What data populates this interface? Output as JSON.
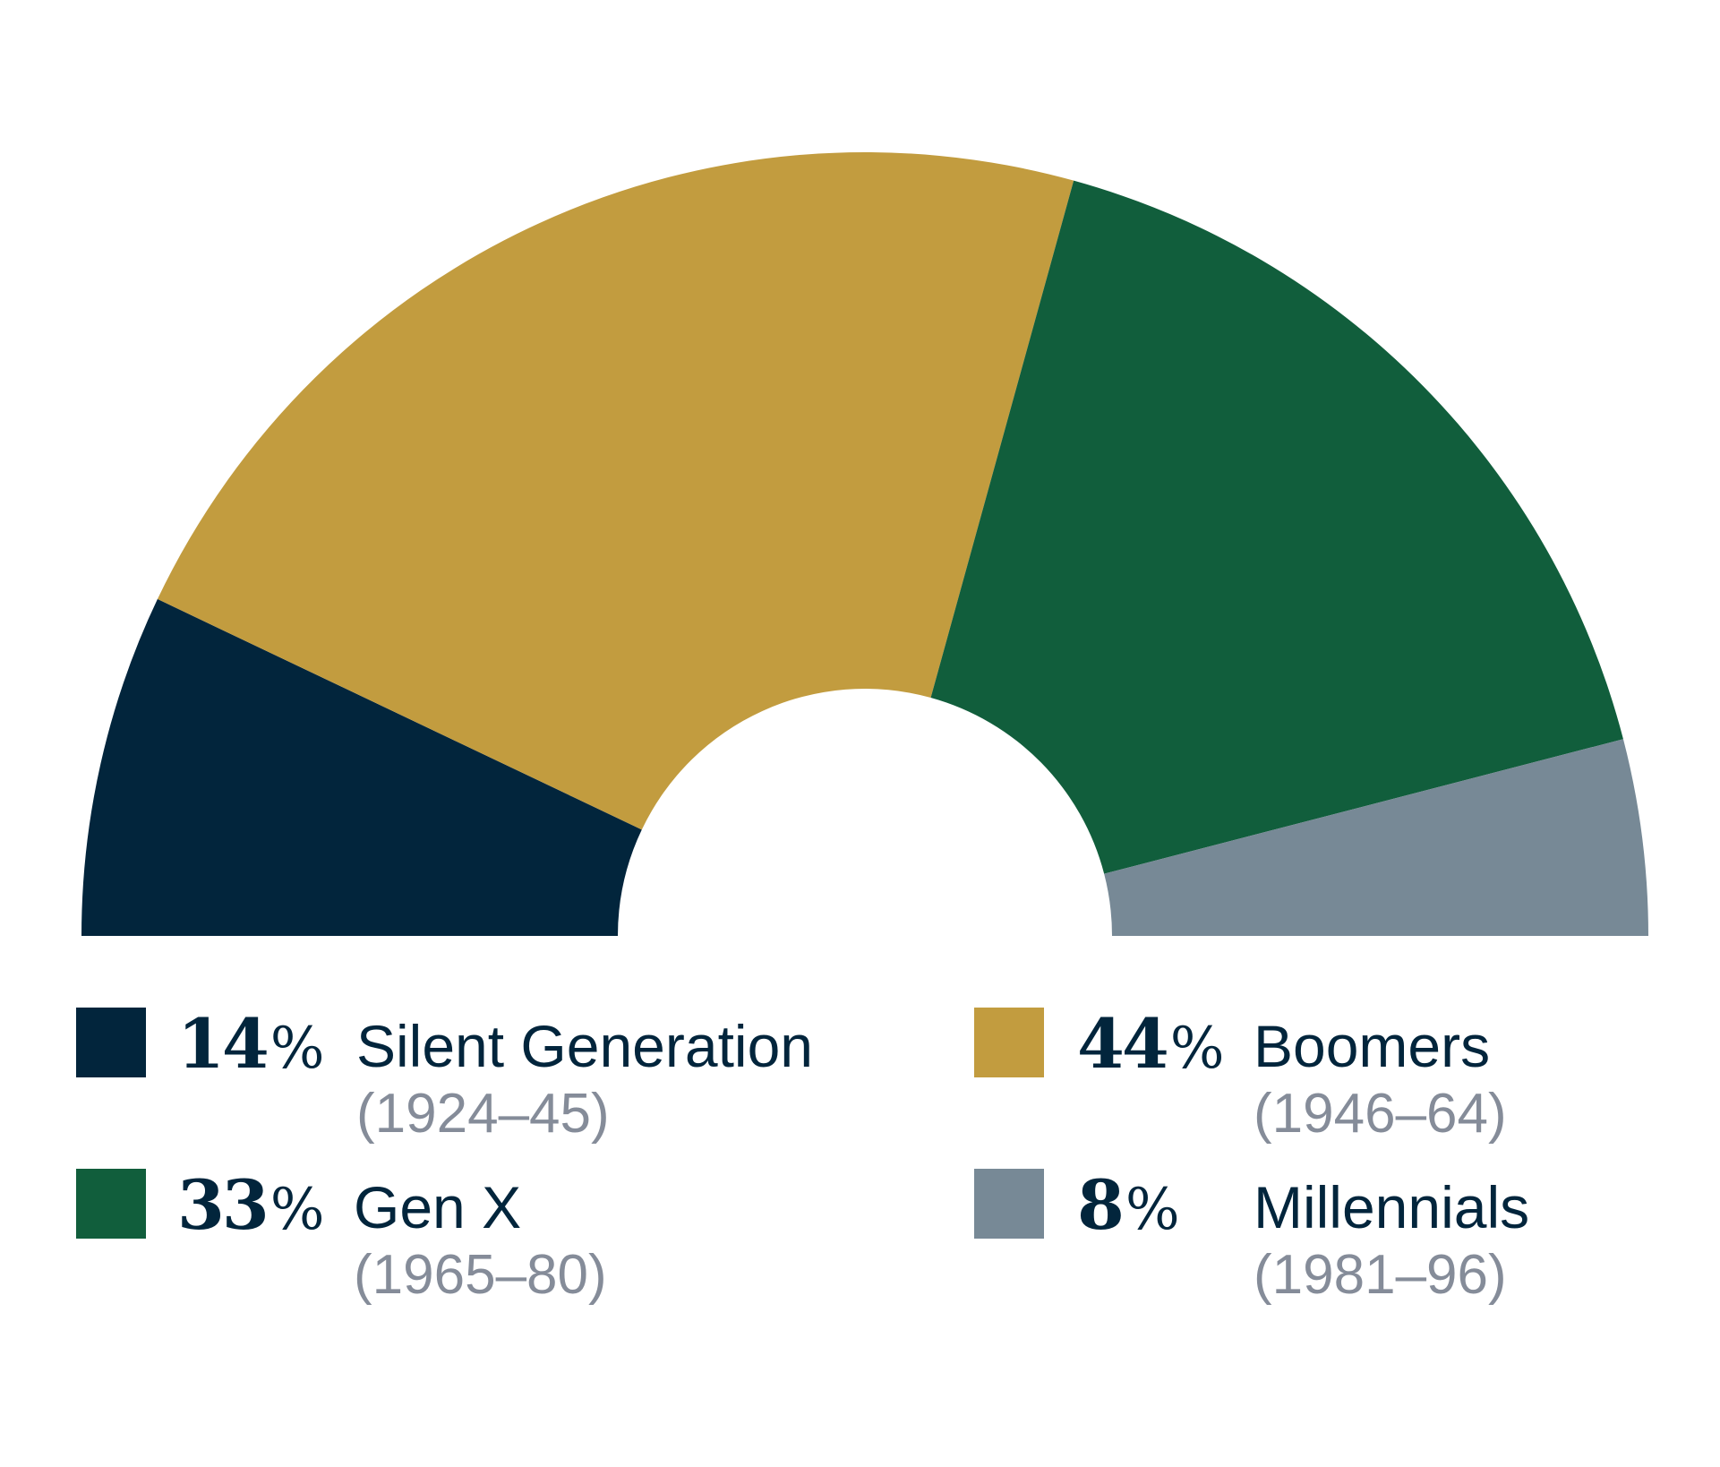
{
  "chart_data": {
    "type": "pie",
    "layout": "semicircle-donut",
    "labels": [
      "Silent Generation",
      "Boomers",
      "Gen X",
      "Millennials"
    ],
    "values": [
      14,
      44,
      33,
      8
    ],
    "unit": "%",
    "colors": [
      "#02253C",
      "#C29C3F",
      "#115E3C",
      "#778996"
    ],
    "legend": [
      {
        "pct": "14",
        "sign": "%",
        "name": "Silent Generation",
        "years": "(1924–45)",
        "color": "#02253C"
      },
      {
        "pct": "44",
        "sign": "%",
        "name": "Boomers",
        "years": "(1946–64)",
        "color": "#C29C3F"
      },
      {
        "pct": "33",
        "sign": "%",
        "name": "Gen X",
        "years": "(1965–80)",
        "color": "#115E3C"
      },
      {
        "pct": "8",
        "sign": "%",
        "name": "Millennials",
        "years": "(1981–96)",
        "color": "#778996"
      }
    ]
  },
  "theme": {
    "text": "#02253C",
    "muted": "#858C99"
  }
}
